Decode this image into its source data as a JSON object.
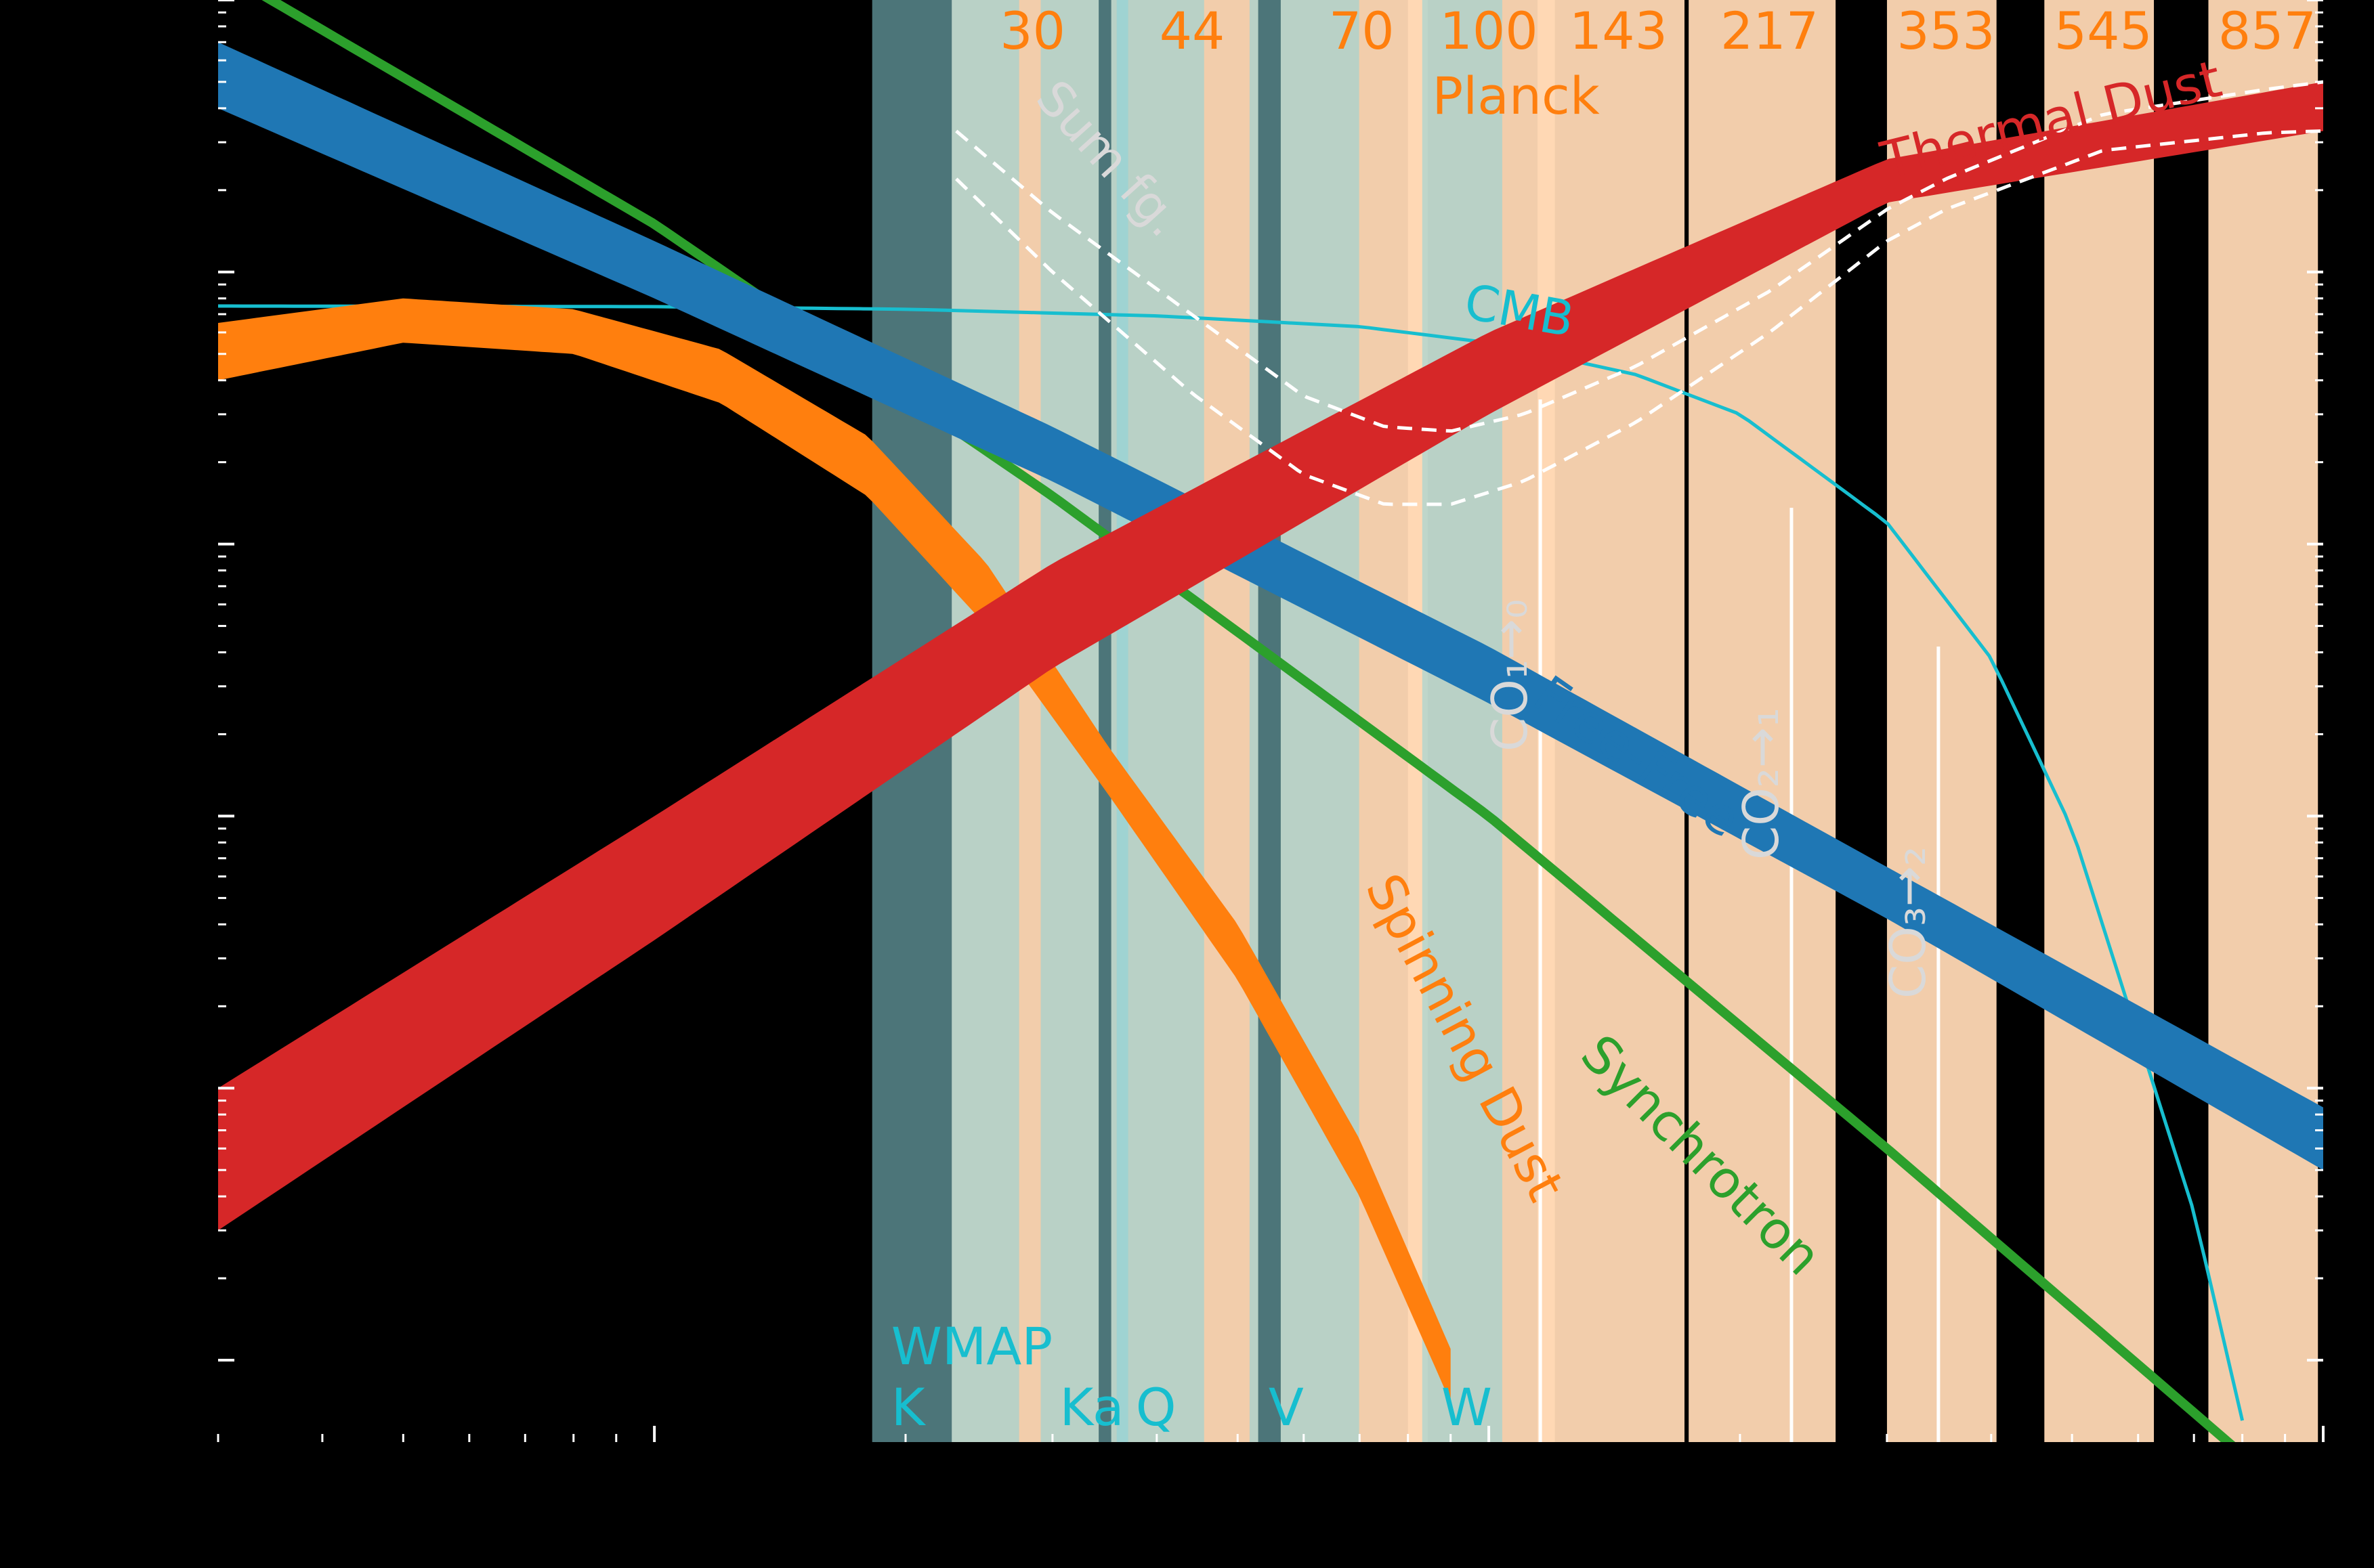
{
  "chart_data": {
    "type": "line",
    "title": "",
    "xlabel": "",
    "ylabel": "",
    "xscale": "log",
    "yscale": "log",
    "xlim": [
      3,
      1000
    ],
    "ylim": [
      0.005,
      1000
    ],
    "grid": false,
    "legend": "none",
    "planck": {
      "label": "Planck",
      "color": "#ff7f0e",
      "bands": [
        {
          "label": "30",
          "center": 28.4
        },
        {
          "label": "44",
          "center": 44.1
        },
        {
          "label": "70",
          "center": 70.4
        },
        {
          "label": "100",
          "center": 100
        },
        {
          "label": "143",
          "center": 143
        },
        {
          "label": "217",
          "center": 217
        },
        {
          "label": "353",
          "center": 353
        },
        {
          "label": "545",
          "center": 545
        },
        {
          "label": "857",
          "center": 857
        }
      ]
    },
    "wmap": {
      "label": "WMAP",
      "color": "#17becf",
      "bands": [
        {
          "label": "K",
          "center": 22.8
        },
        {
          "label": "Ka",
          "center": 33.0
        },
        {
          "label": "Q",
          "center": 40.7
        },
        {
          "label": "V",
          "center": 60.8
        },
        {
          "label": "W",
          "center": 93.5
        }
      ]
    },
    "co_lines": [
      {
        "label": "CO₁→₀",
        "freq": 115.27
      },
      {
        "label": "CO₂→₁",
        "freq": 230.54
      },
      {
        "label": "CO₃→₂",
        "freq": 345.8
      }
    ],
    "series": [
      {
        "name": "Thermal Dust",
        "color": "#d62728",
        "x": [
          3,
          10,
          30,
          100,
          300,
          1000
        ],
        "lower": [
          0.03,
          0.35,
          3.5,
          30,
          180,
          330
        ],
        "upper": [
          0.1,
          1.0,
          8.5,
          60,
          260,
          500
        ]
      },
      {
        "name": "Free-Free",
        "color": "#1f77b4",
        "x": [
          3,
          10,
          30,
          100,
          300,
          1000
        ],
        "lower": [
          400,
          80,
          17,
          2.6,
          0.42,
          0.05
        ],
        "upper": [
          700,
          130,
          27,
          4.2,
          0.65,
          0.085
        ]
      },
      {
        "name": "Synchrotron",
        "color": "#2ca02c",
        "x": [
          3,
          10,
          30,
          100,
          300,
          1000
        ],
        "values": [
          1300,
          150,
          15,
          1.0,
          0.06,
          0.0025
        ]
      },
      {
        "name": "Spinning Dust",
        "color": "#ff7f0e",
        "x": [
          3,
          5,
          8,
          12,
          18,
          25,
          35,
          50,
          70,
          90
        ],
        "lower": [
          40,
          55,
          50,
          33,
          15,
          5,
          1.2,
          0.25,
          0.04,
          0.007
        ],
        "upper": [
          65,
          80,
          73,
          52,
          25,
          8.5,
          1.8,
          0.4,
          0.065,
          0.011
        ]
      },
      {
        "name": "CMB",
        "color": "#17becf",
        "x": [
          3,
          10,
          20,
          40,
          70,
          100,
          150,
          200,
          300,
          400,
          500,
          700,
          800
        ],
        "values": [
          75,
          74.6,
          73,
          69,
          63,
          55,
          42,
          30,
          12,
          3.8,
          0.9,
          0.035,
          0.006
        ]
      },
      {
        "name": "Sum fg.",
        "color": "#ffffff",
        "x": [
          23,
          30,
          44,
          60,
          75,
          90,
          110,
          150,
          217,
          300,
          353,
          545,
          857,
          1000
        ],
        "lower": [
          220,
          100,
          36,
          18,
          14,
          14,
          17,
          28,
          60,
          130,
          170,
          280,
          325,
          330
        ],
        "upper": [
          330,
          165,
          70,
          35,
          27,
          26,
          30,
          45,
          85,
          170,
          220,
          380,
          470,
          500
        ]
      }
    ]
  }
}
